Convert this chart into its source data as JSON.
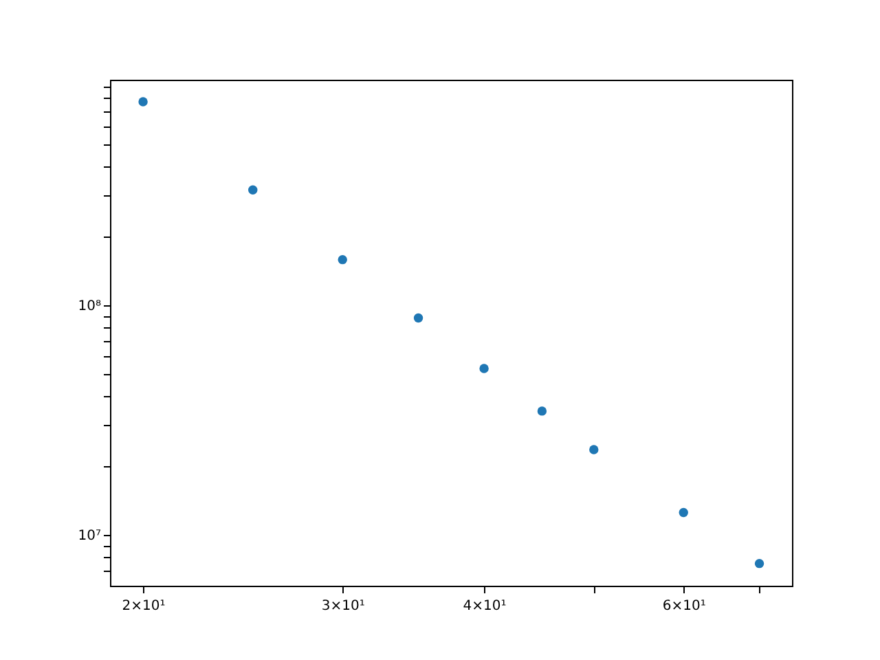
{
  "chart_data": {
    "type": "scatter",
    "x": [
      20,
      25,
      30,
      35,
      40,
      45,
      50,
      60,
      70
    ],
    "series": [
      {
        "color": "#1f77b4",
        "values": [
          770000000,
          318000000,
          158000000,
          88000000,
          53000000,
          34600000,
          23500000,
          12500000,
          7500000
        ]
      }
    ],
    "log": "xy",
    "marker": "circle",
    "grid": false,
    "xlim": [
      18.7,
      74.8
    ],
    "ylim": [
      6000000,
      960000000
    ],
    "xticks": [
      {
        "value": 20,
        "label": "2×10¹"
      },
      {
        "value": 30,
        "label": "3×10¹"
      },
      {
        "value": 40,
        "label": "4×10¹"
      },
      {
        "value": 50,
        "label": null
      },
      {
        "value": 60,
        "label": "6×10¹"
      },
      {
        "value": 70,
        "label": null
      }
    ],
    "yticks": [
      {
        "value": 7000000,
        "label": null
      },
      {
        "value": 8000000,
        "label": null
      },
      {
        "value": 9000000,
        "label": null
      },
      {
        "value": 10000000,
        "label": "10⁷"
      },
      {
        "value": 20000000,
        "label": null
      },
      {
        "value": 30000000,
        "label": null
      },
      {
        "value": 40000000,
        "label": null
      },
      {
        "value": 50000000,
        "label": null
      },
      {
        "value": 60000000,
        "label": null
      },
      {
        "value": 70000000,
        "label": null
      },
      {
        "value": 80000000,
        "label": null
      },
      {
        "value": 90000000,
        "label": null
      },
      {
        "value": 100000000,
        "label": "10⁸"
      },
      {
        "value": 200000000,
        "label": null
      },
      {
        "value": 300000000,
        "label": null
      },
      {
        "value": 400000000,
        "label": null
      },
      {
        "value": 500000000,
        "label": null
      },
      {
        "value": 600000000,
        "label": null
      },
      {
        "value": 700000000,
        "label": null
      },
      {
        "value": 800000000,
        "label": null
      },
      {
        "value": 900000000,
        "label": null
      }
    ]
  }
}
